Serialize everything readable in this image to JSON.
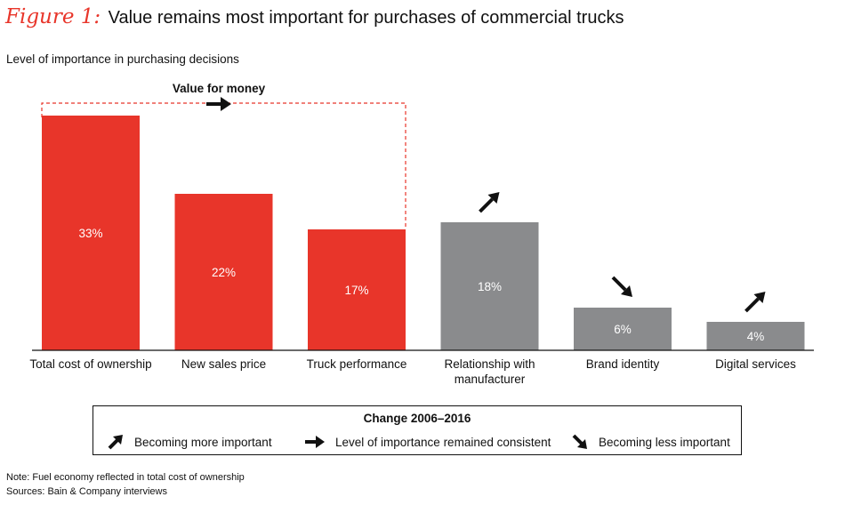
{
  "figure_label": "Figure 1:",
  "title": "Value remains most important for purchases of commercial trucks",
  "subtitle": "Level of importance in purchasing decisions",
  "group_label": "Value for money",
  "colors": {
    "accent": "#e8352a",
    "gray": "#8a8b8d",
    "text": "#111111"
  },
  "chart_data": {
    "type": "bar",
    "categories": [
      "Total cost of ownership",
      "New sales price",
      "Truck performance",
      "Relationship with manufacturer",
      "Brand identity",
      "Digital services"
    ],
    "values": [
      33,
      22,
      17,
      18,
      6,
      4
    ],
    "value_labels": [
      "33%",
      "22%",
      "17%",
      "18%",
      "6%",
      "4%"
    ],
    "bar_colors": [
      "#e8352a",
      "#e8352a",
      "#e8352a",
      "#8a8b8d",
      "#8a8b8d",
      "#8a8b8d"
    ],
    "trend": [
      "none",
      "none",
      "none",
      "up",
      "down",
      "up"
    ],
    "group": {
      "label": "Value for money",
      "members": [
        0,
        1,
        2
      ],
      "trend": "right"
    },
    "ylim": [
      0,
      36
    ],
    "ylabel": "Level of importance in purchasing decisions",
    "grid": false
  },
  "legend": {
    "title": "Change 2006–2016",
    "items": [
      {
        "icon": "arrow-up-right-icon",
        "label": "Becoming more important"
      },
      {
        "icon": "arrow-right-icon",
        "label": "Level of importance remained consistent"
      },
      {
        "icon": "arrow-down-right-icon",
        "label": "Becoming less important"
      }
    ]
  },
  "notes": {
    "note": "Note: Fuel economy reflected in total cost of ownership",
    "sources": "Sources: Bain & Company interviews"
  }
}
